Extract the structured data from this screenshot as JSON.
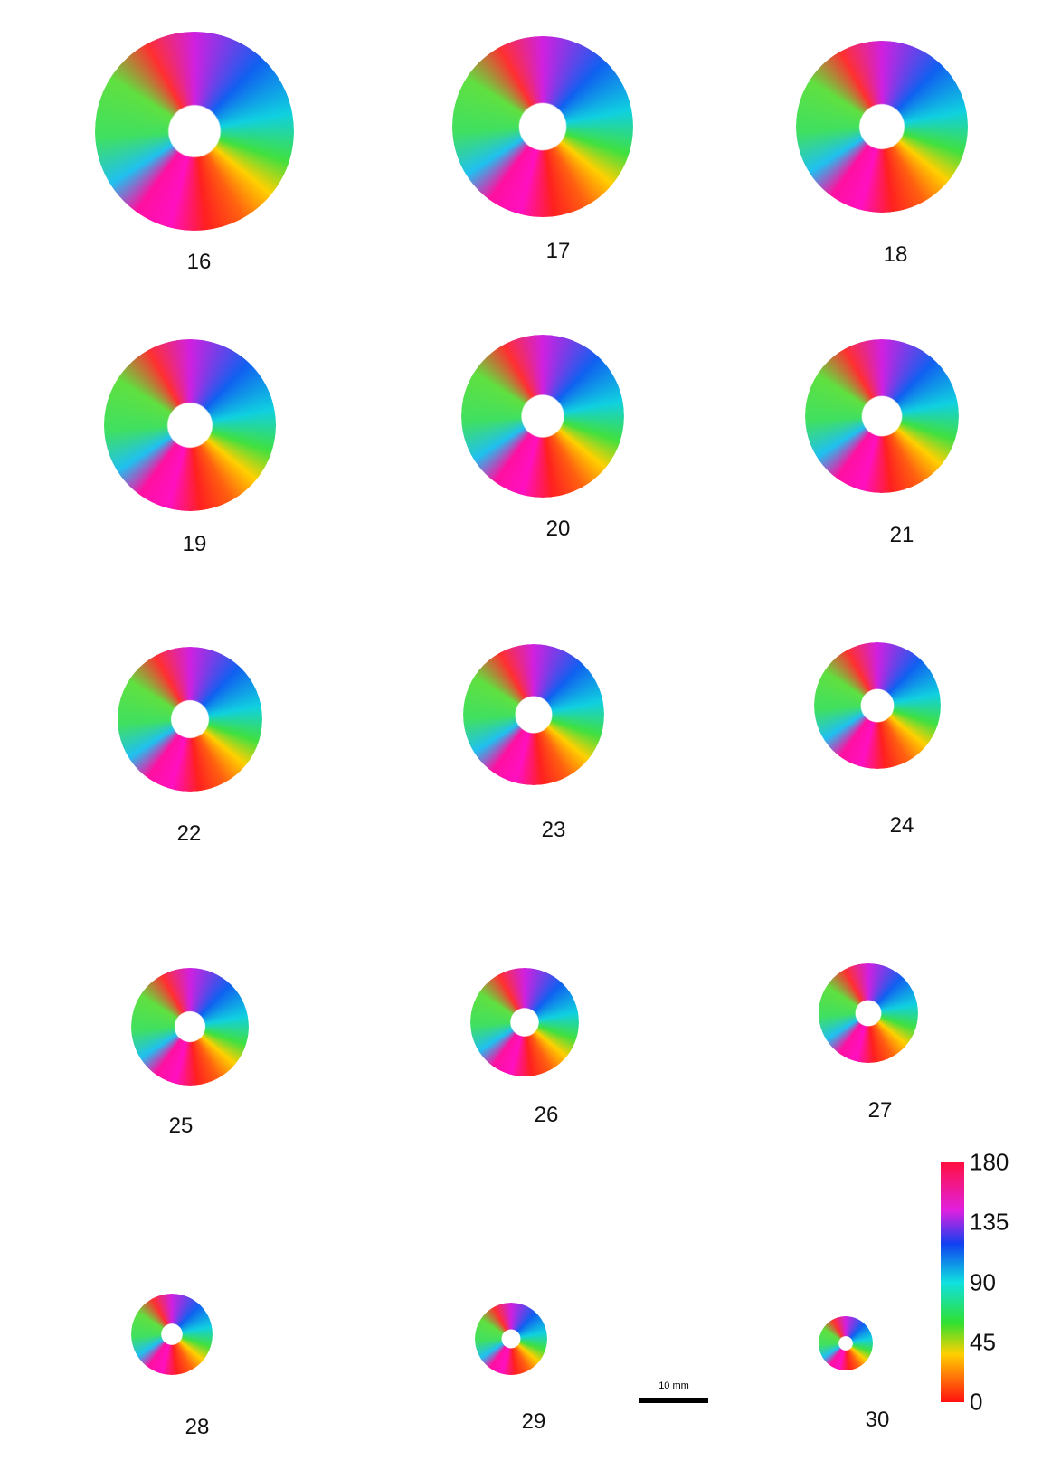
{
  "panels": [
    {
      "label": "16"
    },
    {
      "label": "17"
    },
    {
      "label": "18"
    },
    {
      "label": "19"
    },
    {
      "label": "20"
    },
    {
      "label": "21"
    },
    {
      "label": "22"
    },
    {
      "label": "23"
    },
    {
      "label": "24"
    },
    {
      "label": "25"
    },
    {
      "label": "26"
    },
    {
      "label": "27"
    },
    {
      "label": "28"
    },
    {
      "label": "29"
    },
    {
      "label": "30"
    }
  ],
  "colorbar": {
    "lim": [
      0,
      180
    ],
    "ticks": [
      0,
      45,
      90,
      135,
      180
    ]
  },
  "scale_bar": {
    "label": "10 mm"
  }
}
